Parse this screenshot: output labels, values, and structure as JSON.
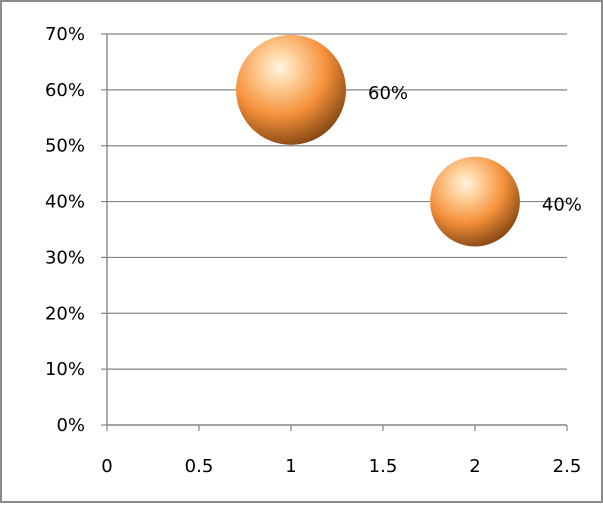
{
  "chart_data": {
    "type": "bubble",
    "title": "",
    "xlabel": "",
    "ylabel": "",
    "xlim": [
      0,
      2.5
    ],
    "ylim": [
      0,
      0.7
    ],
    "x_ticks": [
      "0",
      "0.5",
      "1",
      "1.5",
      "2",
      "2.5"
    ],
    "y_ticks": [
      "0%",
      "10%",
      "20%",
      "30%",
      "40%",
      "50%",
      "60%",
      "70%"
    ],
    "grid": "horizontal",
    "legend": "none",
    "series": [
      {
        "points": [
          {
            "x": 1,
            "y": 0.6,
            "size": 0.6,
            "label": "60%"
          },
          {
            "x": 2,
            "y": 0.4,
            "size": 0.4,
            "label": "40%"
          }
        ]
      }
    ],
    "colors": {
      "bubble_light": "#ffd9a8",
      "bubble_mid": "#f5913c",
      "bubble_dark": "#8a4a15",
      "gridline": "#868686",
      "axis": "#868686"
    }
  }
}
